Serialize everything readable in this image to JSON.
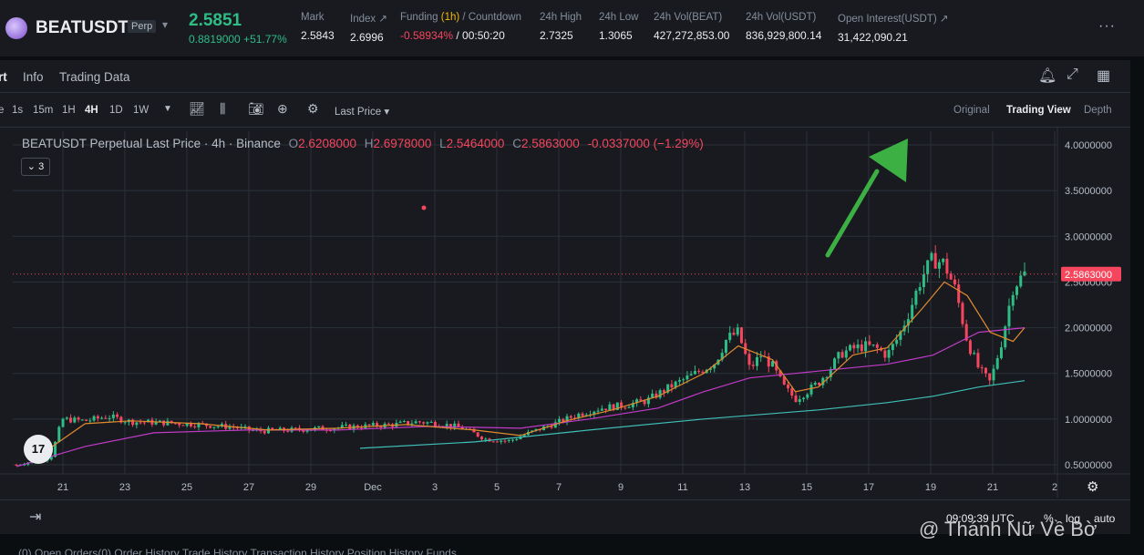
{
  "header": {
    "symbol": "BEATUSDT",
    "badge": "Perp",
    "last_price": "2.5851",
    "sub_price": "0.8819000 +51.77%",
    "stats": [
      {
        "label": "Mark",
        "value": "2.5843",
        "color": "default"
      },
      {
        "label": "Index ↗",
        "value": "2.6996",
        "color": "default"
      },
      {
        "label_pre": "Funding ",
        "label_hl": "(1h)",
        "label_post": " / Countdown",
        "value_red": "-0.58934%",
        "value_rest": " / 00:50:20"
      },
      {
        "label": "24h High",
        "value": "2.7325",
        "color": "default"
      },
      {
        "label": "24h Low",
        "value": "1.3065",
        "color": "default"
      },
      {
        "label": "24h Vol(BEAT)",
        "value": "427,272,853.00",
        "color": "default"
      },
      {
        "label": "24h Vol(USDT)",
        "value": "836,929,800.14",
        "color": "default"
      },
      {
        "label": "Open Interest(USDT) ↗",
        "value": "31,422,090.21",
        "color": "default"
      }
    ],
    "more_icon": "···"
  },
  "tabs": [
    "rt",
    "Info",
    "Trading Data"
  ],
  "toolbar": {
    "intervals": [
      "e",
      "1s",
      "15m",
      "1H",
      "4H",
      "1D",
      "1W"
    ],
    "active_interval": "4H",
    "price_source": "Last Price",
    "views": [
      "Original",
      "Trading View",
      "Depth"
    ],
    "active_view": "Trading View"
  },
  "chart_legend": {
    "title": "BEATUSDT Perpetual Last Price · 4h · Binance",
    "o_label": "O",
    "o": "2.6208000",
    "h_label": "H",
    "h": "2.6978000",
    "l_label": "L",
    "l": "2.5464000",
    "c_label": "C",
    "c": "2.5863000",
    "change": "-0.0337000 (−1.29%)",
    "collapse": "3"
  },
  "chart_data": {
    "type": "candlestick",
    "title": "BEATUSDT Perpetual Last Price · 4h · Binance",
    "x_ticks": [
      "21",
      "23",
      "25",
      "27",
      "29",
      "Dec",
      "3",
      "5",
      "7",
      "9",
      "11",
      "13",
      "15",
      "17",
      "19",
      "21",
      "2"
    ],
    "y_ticks": [
      4.0,
      3.5,
      3.0,
      2.5,
      2.0,
      1.5,
      1.0,
      0.5
    ],
    "y_tick_labels": [
      "4.0000000",
      "3.5000000",
      "3.0000000",
      "2.5000000",
      "2.0000000",
      "1.5000000",
      "1.0000000",
      "0.5000000"
    ],
    "ylim": [
      0.4,
      4.15
    ],
    "current_price": 2.5863,
    "current_price_label": "2.5863000",
    "price_path": [
      [
        0,
        0.5
      ],
      [
        3,
        0.58
      ],
      [
        4,
        1.0
      ],
      [
        6,
        0.98
      ],
      [
        8,
        1.03
      ],
      [
        10,
        0.97
      ],
      [
        13,
        0.96
      ],
      [
        16,
        0.94
      ],
      [
        19,
        0.91
      ],
      [
        21,
        0.87
      ],
      [
        24,
        0.88
      ],
      [
        27,
        0.9
      ],
      [
        30,
        0.92
      ],
      [
        33,
        0.94
      ],
      [
        35,
        0.97
      ],
      [
        37,
        0.95
      ],
      [
        39,
        0.9
      ],
      [
        41,
        0.78
      ],
      [
        43,
        0.76
      ],
      [
        45,
        0.86
      ],
      [
        47,
        0.95
      ],
      [
        49,
        1.05
      ],
      [
        51,
        1.12
      ],
      [
        53,
        1.15
      ],
      [
        55,
        1.2
      ],
      [
        57,
        1.35
      ],
      [
        59,
        1.48
      ],
      [
        61,
        1.62
      ],
      [
        62,
        1.88
      ],
      [
        63,
        1.95
      ],
      [
        64,
        1.55
      ],
      [
        65,
        1.7
      ],
      [
        66,
        1.58
      ],
      [
        67,
        1.35
      ],
      [
        68,
        1.22
      ],
      [
        69,
        1.3
      ],
      [
        70,
        1.4
      ],
      [
        71,
        1.55
      ],
      [
        72,
        1.72
      ],
      [
        73,
        1.77
      ],
      [
        74,
        1.8
      ],
      [
        75,
        1.78
      ],
      [
        76,
        1.7
      ],
      [
        77,
        1.9
      ],
      [
        78,
        2.2
      ],
      [
        79,
        2.55
      ],
      [
        80,
        2.75
      ],
      [
        81,
        2.7
      ],
      [
        82,
        2.4
      ],
      [
        83,
        1.85
      ],
      [
        84,
        1.55
      ],
      [
        85,
        1.4
      ],
      [
        86,
        1.85
      ],
      [
        87,
        2.45
      ],
      [
        88,
        2.59
      ]
    ],
    "ma_short": [
      [
        2,
        0.6
      ],
      [
        6,
        0.95
      ],
      [
        10,
        0.98
      ],
      [
        16,
        0.95
      ],
      [
        22,
        0.88
      ],
      [
        28,
        0.9
      ],
      [
        34,
        0.94
      ],
      [
        40,
        0.88
      ],
      [
        44,
        0.82
      ],
      [
        48,
        0.98
      ],
      [
        52,
        1.1
      ],
      [
        56,
        1.25
      ],
      [
        60,
        1.5
      ],
      [
        63,
        1.8
      ],
      [
        66,
        1.65
      ],
      [
        68,
        1.3
      ],
      [
        70,
        1.35
      ],
      [
        73,
        1.7
      ],
      [
        76,
        1.78
      ],
      [
        79,
        2.2
      ],
      [
        81,
        2.5
      ],
      [
        83,
        2.35
      ],
      [
        85,
        1.95
      ],
      [
        87,
        1.85
      ],
      [
        88,
        2.0
      ]
    ],
    "ma_long": [
      [
        0,
        0.48
      ],
      [
        6,
        0.7
      ],
      [
        12,
        0.85
      ],
      [
        20,
        0.88
      ],
      [
        28,
        0.88
      ],
      [
        36,
        0.92
      ],
      [
        44,
        0.9
      ],
      [
        50,
        1.0
      ],
      [
        56,
        1.12
      ],
      [
        60,
        1.3
      ],
      [
        64,
        1.45
      ],
      [
        68,
        1.5
      ],
      [
        72,
        1.55
      ],
      [
        76,
        1.6
      ],
      [
        80,
        1.7
      ],
      [
        84,
        1.95
      ],
      [
        88,
        2.0
      ]
    ],
    "ma_trend": [
      [
        30,
        0.68
      ],
      [
        40,
        0.75
      ],
      [
        50,
        0.88
      ],
      [
        60,
        1.0
      ],
      [
        70,
        1.1
      ],
      [
        76,
        1.18
      ],
      [
        80,
        1.25
      ],
      [
        84,
        1.35
      ],
      [
        88,
        1.42
      ]
    ],
    "ma_short_color": "#e08a2e",
    "ma_long_color": "#c23ac8",
    "ma_trend_color": "#3fbfb6",
    "up_color": "#2ebd85",
    "down_color": "#f6465d",
    "grid": true
  },
  "bottom": {
    "time": "09:09:39 UTC",
    "pct": "%",
    "log": "log",
    "auto": "auto"
  },
  "watermark": "@ Thánh Nữ Về Bờ",
  "footer_tabs": "(0)   Open Orders(0)   Order History   Trade History   Transaction History   Position History   Funds"
}
